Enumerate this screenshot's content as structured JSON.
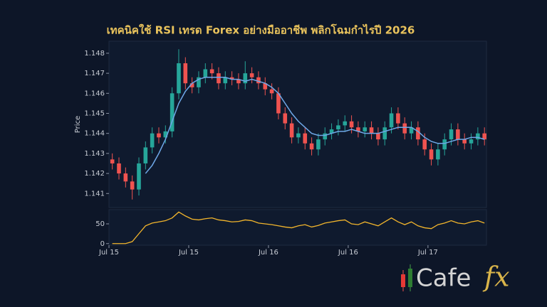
{
  "chart_data": {
    "type": "candlestick",
    "title": "เทคนิคใช้ RSI เทรด Forex อย่างมืออาชีพ พลิกโฉมกำไรปี 2026",
    "y_label": "Price",
    "x": [
      0.5,
      1.5,
      2.5,
      3.5,
      4.5,
      5.5,
      6.5,
      7.5,
      8.5,
      9.5,
      10.5,
      11.5,
      12.5,
      13.5,
      14.5,
      15.5,
      16.5,
      17.5,
      18.5,
      19.5,
      20.5,
      21.5,
      22.5,
      23.5,
      24.5,
      25.5,
      26.5,
      27.5,
      28.5,
      29.5,
      30.5,
      31.5,
      32.5,
      33.5,
      34.5,
      35.5,
      36.5,
      37.5,
      38.5,
      39.5,
      40.5,
      41.5,
      42.5,
      43.5,
      44.5,
      45.5,
      46.5,
      47.5,
      48.5,
      49.5,
      50.5,
      51.5,
      52.5,
      53.5,
      54.5,
      55.5,
      56.5
    ],
    "open": [
      1.1427,
      1.1425,
      1.142,
      1.1416,
      1.1412,
      1.1425,
      1.1433,
      1.144,
      1.1438,
      1.1441,
      1.146,
      1.1475,
      1.1465,
      1.1463,
      1.1468,
      1.1472,
      1.147,
      1.1465,
      1.1468,
      1.1467,
      1.1465,
      1.147,
      1.1468,
      1.1465,
      1.1462,
      1.146,
      1.145,
      1.1445,
      1.1438,
      1.144,
      1.1435,
      1.1432,
      1.1437,
      1.144,
      1.1442,
      1.1444,
      1.1446,
      1.1443,
      1.1441,
      1.1443,
      1.144,
      1.1437,
      1.1443,
      1.145,
      1.1445,
      1.144,
      1.1443,
      1.1437,
      1.1432,
      1.1427,
      1.1432,
      1.1437,
      1.1442,
      1.1437,
      1.1435,
      1.1437,
      1.144
    ],
    "high": [
      1.143,
      1.1428,
      1.1423,
      1.1419,
      1.1428,
      1.1436,
      1.1443,
      1.1443,
      1.1444,
      1.1463,
      1.1482,
      1.1478,
      1.1468,
      1.1471,
      1.1475,
      1.1475,
      1.1473,
      1.1471,
      1.1471,
      1.147,
      1.1476,
      1.1473,
      1.1471,
      1.1468,
      1.1465,
      1.1463,
      1.1453,
      1.1448,
      1.1443,
      1.1443,
      1.1438,
      1.144,
      1.1443,
      1.1445,
      1.1447,
      1.1449,
      1.1449,
      1.1446,
      1.1446,
      1.1446,
      1.1443,
      1.1446,
      1.1453,
      1.1453,
      1.1448,
      1.1446,
      1.1446,
      1.144,
      1.1435,
      1.1435,
      1.144,
      1.1445,
      1.1445,
      1.144,
      1.144,
      1.1443,
      1.1443
    ],
    "low": [
      1.1422,
      1.1417,
      1.1413,
      1.1407,
      1.1409,
      1.1422,
      1.143,
      1.1435,
      1.1435,
      1.1438,
      1.1457,
      1.1462,
      1.146,
      1.146,
      1.1465,
      1.1467,
      1.1462,
      1.1462,
      1.1464,
      1.1462,
      1.1462,
      1.1465,
      1.1462,
      1.1459,
      1.1457,
      1.1447,
      1.1442,
      1.1435,
      1.1435,
      1.1432,
      1.1429,
      1.1429,
      1.1434,
      1.1437,
      1.1439,
      1.1441,
      1.144,
      1.1438,
      1.1438,
      1.1437,
      1.1434,
      1.1434,
      1.144,
      1.1442,
      1.1437,
      1.1437,
      1.1434,
      1.1429,
      1.1424,
      1.1424,
      1.1429,
      1.1434,
      1.1434,
      1.1432,
      1.1432,
      1.1434,
      1.1434
    ],
    "close": [
      1.1425,
      1.142,
      1.1416,
      1.1412,
      1.1425,
      1.1433,
      1.144,
      1.1438,
      1.1441,
      1.146,
      1.1475,
      1.1465,
      1.1463,
      1.1468,
      1.1472,
      1.147,
      1.1465,
      1.1468,
      1.1467,
      1.1465,
      1.147,
      1.1468,
      1.1465,
      1.1462,
      1.146,
      1.145,
      1.1445,
      1.1438,
      1.144,
      1.1435,
      1.1432,
      1.1437,
      1.144,
      1.1442,
      1.1444,
      1.1446,
      1.1443,
      1.1441,
      1.1443,
      1.144,
      1.1437,
      1.1443,
      1.145,
      1.1445,
      1.144,
      1.1443,
      1.1437,
      1.1432,
      1.1427,
      1.1432,
      1.1437,
      1.1442,
      1.1437,
      1.1435,
      1.1437,
      1.144,
      1.1437
    ],
    "up_color": "#26a69a",
    "down_color": "#ef5350",
    "series": [
      {
        "color": "#6fa8e8",
        "values": [
          null,
          null,
          null,
          null,
          null,
          1.142,
          1.1424,
          1.143,
          1.1437,
          1.1446,
          1.1455,
          1.1461,
          1.1465,
          1.1467,
          1.1468,
          1.1468,
          1.1468,
          1.1468,
          1.1467,
          1.1467,
          1.1466,
          1.1467,
          1.1466,
          1.1465,
          1.1463,
          1.146,
          1.1455,
          1.145,
          1.1446,
          1.1443,
          1.144,
          1.1439,
          1.1439,
          1.144,
          1.1441,
          1.1441,
          1.1442,
          1.1441,
          1.144,
          1.144,
          1.144,
          1.1441,
          1.1442,
          1.1443,
          1.1443,
          1.1443,
          1.1441,
          1.1438,
          1.1436,
          1.1435,
          1.1435,
          1.1436,
          1.1437,
          1.1437,
          1.1438,
          1.1438,
          1.1437
        ]
      }
    ],
    "xlim": [
      0,
      56.8
    ],
    "xticks": [
      {
        "value": 0,
        "label": "Jul 15"
      },
      {
        "value": 12,
        "label": "Jul 15"
      },
      {
        "value": 24,
        "label": "Jul 16"
      },
      {
        "value": 36,
        "label": "Jul 16"
      },
      {
        "value": 48,
        "label": "Jul 17"
      }
    ],
    "ylim": [
      1.1403,
      1.1486
    ],
    "yticks": [
      1.141,
      1.142,
      1.143,
      1.144,
      1.145,
      1.146,
      1.147,
      1.148
    ],
    "rsi": {
      "color": "#f2b52c",
      "values": [
        0,
        0,
        0,
        5,
        25,
        45,
        52,
        55,
        58,
        65,
        80,
        70,
        62,
        60,
        63,
        65,
        60,
        58,
        55,
        56,
        60,
        58,
        52,
        50,
        48,
        45,
        42,
        40,
        45,
        48,
        42,
        46,
        52,
        55,
        58,
        60,
        50,
        48,
        55,
        50,
        45,
        55,
        65,
        55,
        48,
        55,
        45,
        40,
        38,
        48,
        52,
        58,
        52,
        50,
        55,
        58,
        52
      ],
      "ylim": [
        -4,
        86
      ],
      "yticks": [
        0,
        50
      ]
    }
  },
  "watermark": {
    "word": "Cafe",
    "mark": "fx"
  }
}
